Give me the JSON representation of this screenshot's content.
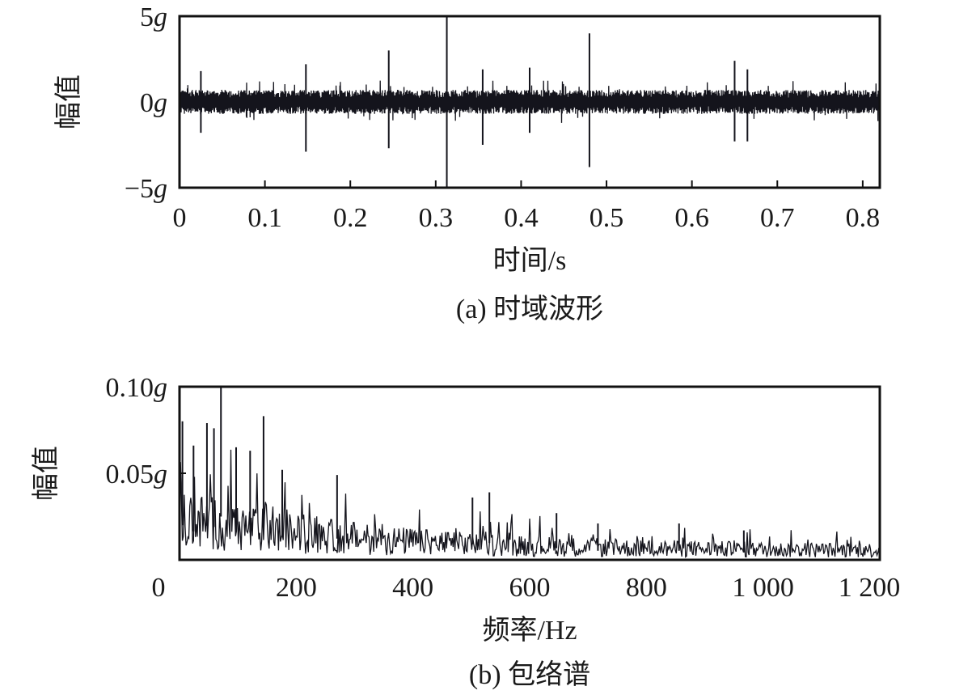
{
  "chart_data": [
    {
      "type": "line",
      "caption": "(a) 时域波形",
      "xlabel": "时间/s",
      "ylabel": "幅值",
      "xlim": [
        0,
        0.82
      ],
      "ylim": [
        -5,
        5
      ],
      "x_ticks": [
        "0",
        "0.1",
        "0.2",
        "0.3",
        "0.4",
        "0.5",
        "0.6",
        "0.7",
        "0.8"
      ],
      "x_tick_values": [
        0,
        0.1,
        0.2,
        0.3,
        0.4,
        0.5,
        0.6,
        0.7,
        0.8
      ],
      "y_ticks": [
        {
          "num": "5",
          "unit": "g",
          "value": 5
        },
        {
          "num": "0",
          "unit": "g",
          "value": 0
        },
        {
          "num": "−5",
          "unit": "g",
          "value": -5
        }
      ],
      "background_noise_amplitude": 0.7,
      "impulses": [
        {
          "t": 0.025,
          "max": 1.8,
          "min": -1.8
        },
        {
          "t": 0.148,
          "max": 2.2,
          "min": -2.9
        },
        {
          "t": 0.245,
          "max": 3.0,
          "min": -2.7
        },
        {
          "t": 0.313,
          "max": 5.0,
          "min": -5.0
        },
        {
          "t": 0.355,
          "max": 1.9,
          "min": -2.5
        },
        {
          "t": 0.41,
          "max": 2.0,
          "min": -1.8
        },
        {
          "t": 0.48,
          "max": 4.0,
          "min": -3.8
        },
        {
          "t": 0.65,
          "max": 2.4,
          "min": -2.3
        },
        {
          "t": 0.665,
          "max": 1.9,
          "min": -2.3
        }
      ],
      "grid": false,
      "line_color": "#14141c"
    },
    {
      "type": "line",
      "caption": "(b) 包络谱",
      "xlabel": "频率/Hz",
      "ylabel": "幅值",
      "xlim": [
        0,
        1200
      ],
      "ylim": [
        0,
        0.1
      ],
      "x_ticks": [
        "0",
        "200",
        "400",
        "600",
        "800",
        "1 000",
        "1 200"
      ],
      "x_tick_values": [
        0,
        200,
        400,
        600,
        800,
        1000,
        1200
      ],
      "y_ticks": [
        {
          "num": "0.10",
          "unit": "g",
          "value": 0.1
        },
        {
          "num": "0.05",
          "unit": "g",
          "value": 0.05
        }
      ],
      "peaks": [
        {
          "f": 5,
          "a": 0.08
        },
        {
          "f": 24,
          "a": 0.066
        },
        {
          "f": 47,
          "a": 0.079
        },
        {
          "f": 59,
          "a": 0.076
        },
        {
          "f": 71,
          "a": 0.1
        },
        {
          "f": 97,
          "a": 0.065
        },
        {
          "f": 121,
          "a": 0.063
        },
        {
          "f": 144,
          "a": 0.083
        },
        {
          "f": 176,
          "a": 0.052
        },
        {
          "f": 270,
          "a": 0.049
        },
        {
          "f": 502,
          "a": 0.036
        },
        {
          "f": 531,
          "a": 0.039
        },
        {
          "f": 646,
          "a": 0.027
        },
        {
          "f": 717,
          "a": 0.021
        },
        {
          "f": 856,
          "a": 0.021
        },
        {
          "f": 967,
          "a": 0.017
        }
      ],
      "grid": false,
      "line_color": "#14141c"
    }
  ]
}
